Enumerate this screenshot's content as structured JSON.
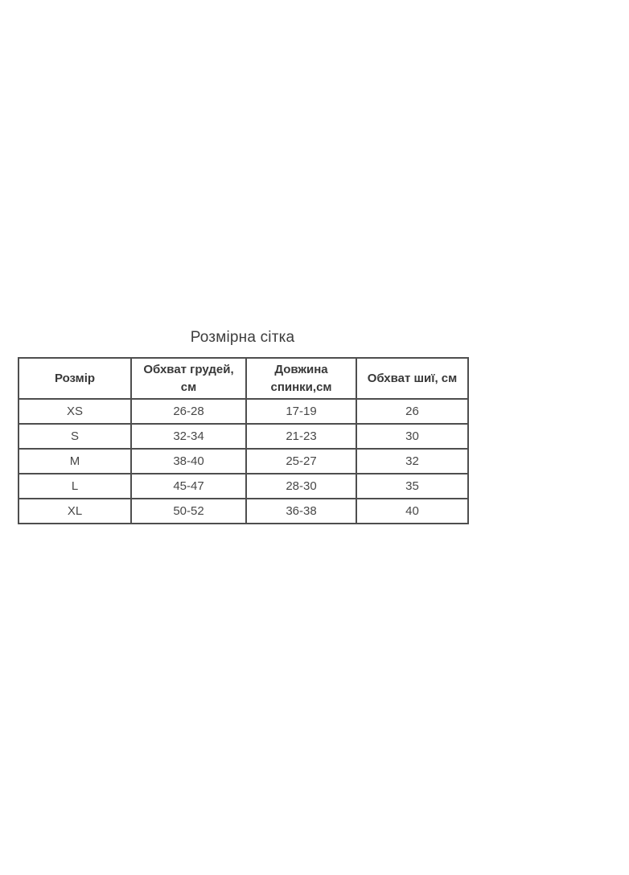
{
  "page": {
    "title": "Розмірна сітка",
    "background_color": "#ffffff"
  },
  "table": {
    "border_color": "#4e4e4e",
    "header_text_color": "#383838",
    "cell_text_color": "#474747",
    "columns": [
      "Розмір",
      "Обхват грудей, см",
      "Довжина спинки,см",
      "Обхват шиї, см"
    ],
    "rows": [
      {
        "size": "XS",
        "chest": "26-28",
        "back": "17-19",
        "neck": "26"
      },
      {
        "size": "S",
        "chest": "32-34",
        "back": "21-23",
        "neck": "30"
      },
      {
        "size": "M",
        "chest": "38-40",
        "back": "25-27",
        "neck": "32"
      },
      {
        "size": "L",
        "chest": "45-47",
        "back": "28-30",
        "neck": "35"
      },
      {
        "size": "XL",
        "chest": "50-52",
        "back": "36-38",
        "neck": "40"
      }
    ]
  }
}
